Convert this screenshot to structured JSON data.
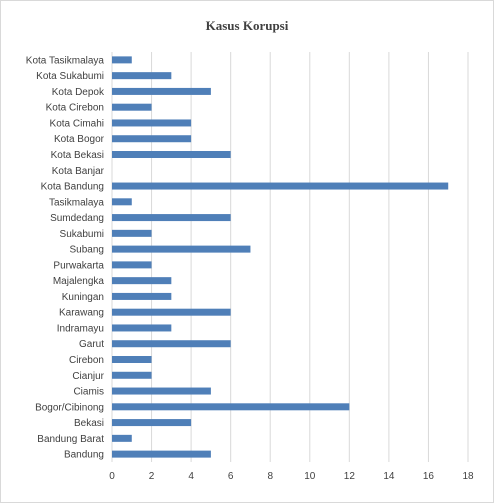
{
  "chart_data": {
    "type": "bar",
    "orientation": "horizontal",
    "title": "Kasus Korupsi",
    "xlabel": "",
    "ylabel": "",
    "xlim": [
      0,
      18
    ],
    "x_ticks": [
      0,
      2,
      4,
      6,
      8,
      10,
      12,
      14,
      16,
      18
    ],
    "grid": "vertical",
    "legend": "none",
    "bar_color": "#4f7fb8",
    "categories": [
      "Kota Tasikmalaya",
      "Kota Sukabumi",
      "Kota Depok",
      "Kota Cirebon",
      "Kota Cimahi",
      "Kota Bogor",
      "Kota Bekasi",
      "Kota Banjar",
      "Kota Bandung",
      "Tasikmalaya",
      "Sumdedang",
      "Sukabumi",
      "Subang",
      "Purwakarta",
      "Majalengka",
      "Kuningan",
      "Karawang",
      "Indramayu",
      "Garut",
      "Cirebon",
      "Cianjur",
      "Ciamis",
      "Bogor/Cibinong",
      "Bekasi",
      "Bandung Barat",
      "Bandung"
    ],
    "values": [
      1,
      3,
      5,
      2,
      4,
      4,
      6,
      0,
      17,
      1,
      6,
      2,
      7,
      2,
      3,
      3,
      6,
      3,
      6,
      2,
      2,
      5,
      12,
      4,
      1,
      5
    ]
  }
}
